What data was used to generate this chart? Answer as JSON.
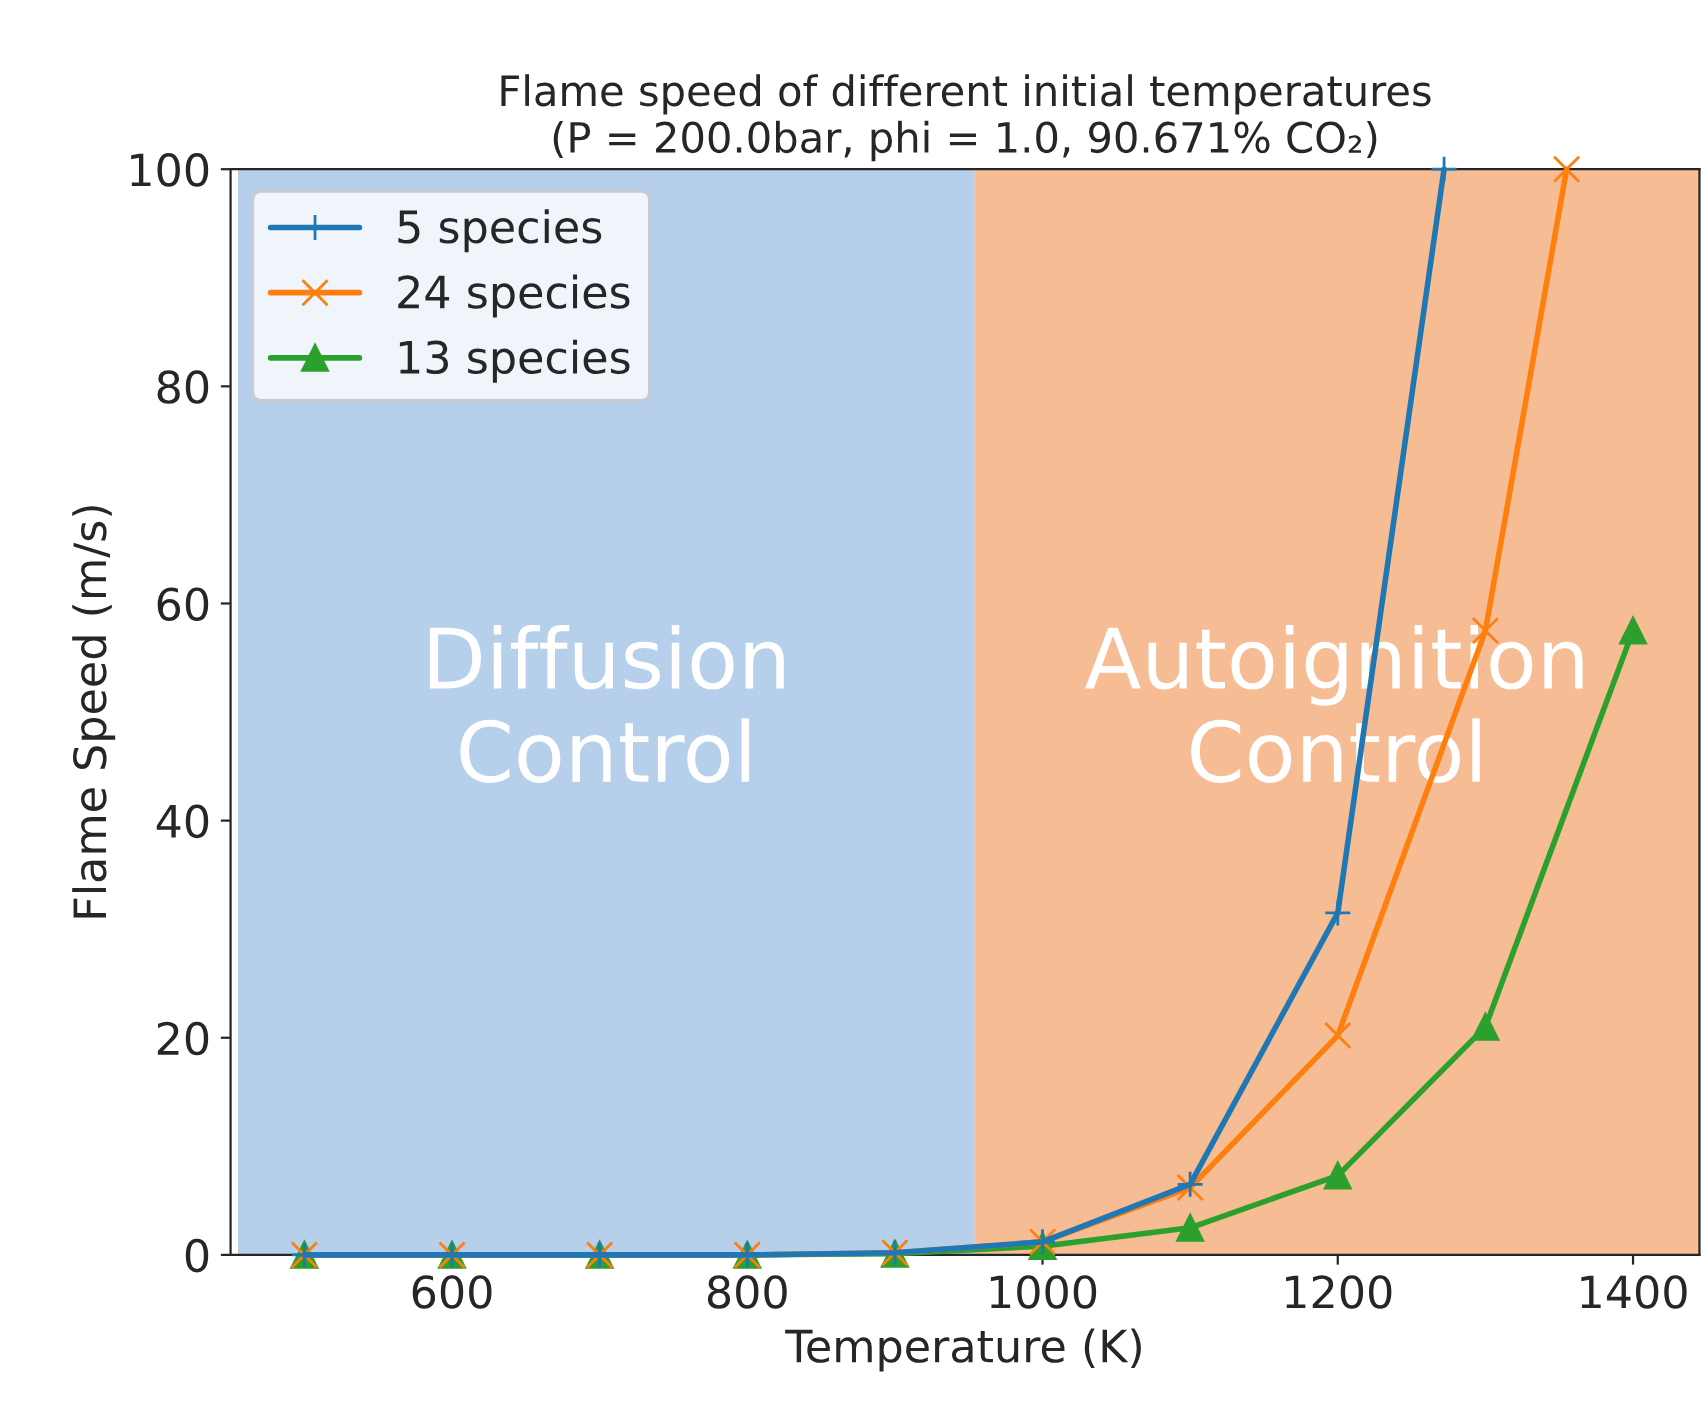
{
  "chart_data": {
    "type": "line",
    "title": "Flame speed of different initial temperatures\n(P = 200.0bar, phi = 1.0, 90.671% CO₂)",
    "xlabel": "Temperature (K)",
    "ylabel": "Flame Speed (m/s)",
    "xlim": [
      450,
      1445
    ],
    "xticks": [
      600,
      800,
      1000,
      1200,
      1400
    ],
    "ylim": [
      0,
      100
    ],
    "yticks": [
      0,
      20,
      40,
      60,
      80,
      100
    ],
    "grid": false,
    "legend": "top left",
    "series": [
      {
        "name": "5 species",
        "color": "#1f77b4",
        "marker": "cross",
        "x": [
          500,
          600,
          700,
          800,
          900,
          1000,
          1100,
          1200,
          1272
        ],
        "values": [
          0,
          0,
          0,
          0,
          0.2,
          1.2,
          6.5,
          31.5,
          100
        ]
      },
      {
        "name": "24 species",
        "color": "#ff7f0e",
        "marker": "x",
        "x": [
          500,
          600,
          700,
          800,
          900,
          1000,
          1100,
          1200,
          1300,
          1355
        ],
        "values": [
          0,
          0,
          0,
          0,
          0.2,
          1.2,
          6.2,
          20.2,
          57.5,
          100
        ]
      },
      {
        "name": "13 species",
        "color": "#2ca02c",
        "marker": "triangle",
        "x": [
          500,
          600,
          700,
          800,
          900,
          1000,
          1100,
          1200,
          1300,
          1400
        ],
        "values": [
          0,
          0,
          0,
          0,
          0.1,
          0.8,
          2.5,
          7.3,
          21,
          57.5
        ]
      }
    ],
    "bands": [
      {
        "axis": "x",
        "from": 455,
        "to": 954,
        "label": "Diffusion\nControl",
        "color": "#a9c7e8"
      },
      {
        "axis": "x",
        "from": 954,
        "to": 1445,
        "label": "Autoignition\nControl",
        "color": "#f4b183"
      }
    ]
  }
}
